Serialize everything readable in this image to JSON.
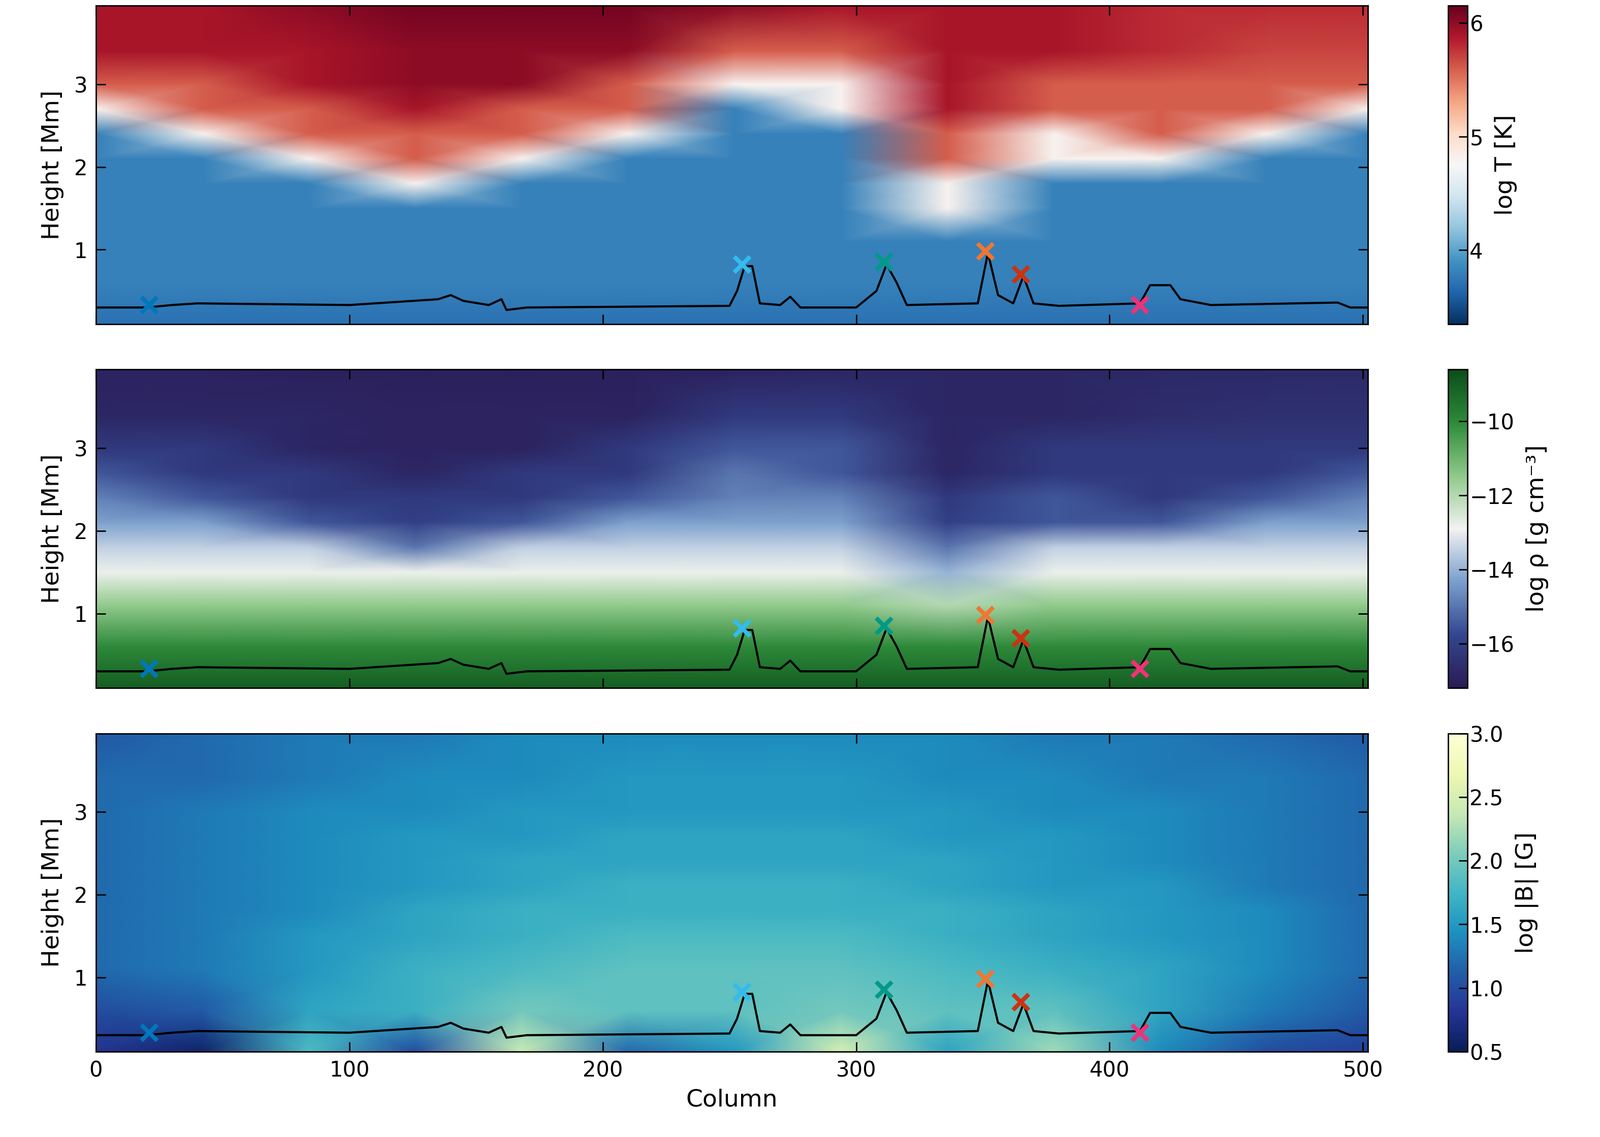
{
  "chart_data": [
    {
      "type": "heatmap",
      "ylabel": "Height [Mm]",
      "tick_labels": "y",
      "xlim": [
        0,
        502
      ],
      "ylim": [
        0.1,
        3.95
      ],
      "xticks": [
        0,
        100,
        200,
        300,
        400,
        500
      ],
      "yticks": [
        1,
        2,
        3
      ],
      "x": [
        0,
        42,
        84,
        126,
        168,
        210,
        252,
        294,
        336,
        378,
        420,
        462,
        502
      ],
      "y": [
        0.1,
        0.6,
        1.1,
        1.5,
        1.8,
        2.1,
        2.4,
        2.7,
        3.0,
        3.4,
        3.95
      ],
      "cells": [
        [
          3.7,
          3.7,
          3.7,
          3.7,
          3.7,
          3.7,
          3.7,
          3.7,
          3.7,
          3.7,
          3.7,
          3.7,
          3.7
        ],
        [
          3.8,
          3.8,
          3.8,
          3.8,
          3.8,
          3.8,
          3.8,
          3.8,
          3.8,
          3.8,
          3.8,
          3.8,
          3.8
        ],
        [
          3.8,
          3.8,
          3.8,
          3.8,
          3.8,
          3.8,
          3.8,
          3.8,
          3.8,
          3.8,
          3.8,
          3.8,
          3.8
        ],
        [
          3.8,
          3.8,
          3.8,
          3.8,
          3.8,
          3.8,
          3.8,
          3.8,
          4.8,
          3.8,
          3.8,
          3.8,
          3.8
        ],
        [
          3.8,
          3.8,
          3.8,
          4.8,
          3.8,
          3.8,
          3.8,
          3.8,
          4.8,
          3.8,
          3.8,
          3.8,
          3.8
        ],
        [
          3.8,
          3.8,
          4.8,
          5.6,
          4.8,
          3.8,
          3.8,
          3.8,
          5.6,
          4.8,
          4.8,
          3.8,
          3.8
        ],
        [
          3.8,
          4.8,
          5.6,
          5.6,
          5.6,
          4.8,
          3.8,
          3.8,
          5.6,
          4.8,
          5.6,
          4.8,
          3.8
        ],
        [
          4.8,
          5.6,
          5.6,
          5.9,
          5.6,
          5.6,
          3.8,
          4.8,
          5.9,
          5.6,
          5.6,
          5.6,
          4.8
        ],
        [
          5.6,
          5.6,
          5.9,
          6.0,
          6.0,
          5.6,
          4.8,
          4.8,
          5.9,
          5.6,
          5.6,
          5.6,
          5.6
        ],
        [
          5.9,
          5.9,
          5.9,
          6.0,
          6.0,
          6.0,
          5.6,
          5.6,
          5.9,
          5.9,
          5.8,
          5.7,
          5.7
        ],
        [
          5.9,
          5.9,
          6.0,
          6.1,
          6.1,
          6.1,
          6.0,
          5.9,
          5.9,
          5.9,
          5.8,
          5.8,
          5.8
        ]
      ],
      "colorbar": {
        "label": "log T [K]",
        "range": [
          3.35,
          6.15
        ],
        "ticks": [
          4,
          5,
          6
        ]
      },
      "series": [
        {
          "type": "line",
          "color": "#000000",
          "x": [
            0,
            20,
            30,
            40,
            100,
            135,
            140,
            145,
            155,
            160,
            162,
            170,
            250,
            253,
            256,
            259,
            262,
            270,
            274,
            278,
            300,
            308,
            312,
            316,
            320,
            348,
            352,
            356,
            362,
            366,
            370,
            380,
            412,
            416,
            424,
            428,
            440,
            490,
            495,
            502
          ],
          "values": [
            0.3,
            0.3,
            0.33,
            0.35,
            0.33,
            0.4,
            0.45,
            0.38,
            0.33,
            0.4,
            0.27,
            0.3,
            0.32,
            0.5,
            0.8,
            0.8,
            0.35,
            0.33,
            0.43,
            0.3,
            0.3,
            0.5,
            0.82,
            0.6,
            0.33,
            0.35,
            0.96,
            0.45,
            0.35,
            0.68,
            0.35,
            0.32,
            0.35,
            0.57,
            0.57,
            0.4,
            0.33,
            0.36,
            0.3,
            0.3
          ]
        },
        {
          "type": "scatter",
          "marker": "x",
          "x": [
            21,
            255,
            311,
            351,
            365,
            412
          ],
          "values": [
            0.33,
            0.82,
            0.85,
            0.98,
            0.7,
            0.33
          ],
          "colors": [
            "#0077bb",
            "#33bbee",
            "#009988",
            "#ee7733",
            "#cc3311",
            "#ee3377"
          ]
        }
      ]
    },
    {
      "type": "heatmap",
      "ylabel": "Height [Mm]",
      "tick_labels": "y",
      "xlim": [
        0,
        502
      ],
      "ylim": [
        0.1,
        3.95
      ],
      "xticks": [
        0,
        100,
        200,
        300,
        400,
        500
      ],
      "yticks": [
        1,
        2,
        3
      ],
      "x": [
        0,
        42,
        84,
        126,
        168,
        210,
        252,
        294,
        336,
        378,
        420,
        462,
        502
      ],
      "y": [
        0.1,
        0.6,
        1.1,
        1.5,
        1.8,
        2.1,
        2.4,
        2.7,
        3.0,
        3.4,
        3.95
      ],
      "cells": [
        [
          -9.0,
          -9.0,
          -9.0,
          -9.0,
          -9.0,
          -9.0,
          -9.0,
          -9.0,
          -9.0,
          -9.0,
          -9.0,
          -9.0,
          -9.0
        ],
        [
          -10.0,
          -10.0,
          -10.0,
          -10.0,
          -10.0,
          -10.0,
          -10.0,
          -10.0,
          -10.0,
          -10.0,
          -10.0,
          -10.0,
          -10.0
        ],
        [
          -11.5,
          -11.5,
          -11.5,
          -11.5,
          -11.5,
          -11.5,
          -11.5,
          -11.5,
          -12.0,
          -11.5,
          -11.5,
          -11.5,
          -11.5
        ],
        [
          -12.8,
          -12.8,
          -12.8,
          -12.8,
          -12.8,
          -12.8,
          -12.8,
          -12.8,
          -14.0,
          -12.8,
          -12.8,
          -12.8,
          -12.8
        ],
        [
          -13.5,
          -13.5,
          -13.5,
          -15.0,
          -13.5,
          -13.5,
          -13.5,
          -13.5,
          -15.0,
          -13.5,
          -13.5,
          -13.5,
          -13.5
        ],
        [
          -14.3,
          -14.3,
          -15.5,
          -16.0,
          -15.5,
          -14.3,
          -14.3,
          -14.3,
          -16.0,
          -15.5,
          -15.5,
          -14.3,
          -14.3
        ],
        [
          -14.8,
          -15.5,
          -16.2,
          -16.2,
          -16.2,
          -15.5,
          -14.8,
          -14.8,
          -16.2,
          -15.5,
          -16.2,
          -15.5,
          -14.8
        ],
        [
          -15.5,
          -16.2,
          -16.2,
          -16.8,
          -16.2,
          -16.2,
          -15.0,
          -15.5,
          -16.8,
          -16.2,
          -16.2,
          -16.2,
          -15.5
        ],
        [
          -16.2,
          -16.2,
          -16.8,
          -16.9,
          -16.9,
          -16.2,
          -15.5,
          -15.5,
          -16.8,
          -16.2,
          -16.2,
          -16.2,
          -16.2
        ],
        [
          -16.8,
          -16.8,
          -16.8,
          -16.9,
          -16.9,
          -16.9,
          -16.2,
          -16.2,
          -16.8,
          -16.8,
          -16.6,
          -16.5,
          -16.5
        ],
        [
          -16.9,
          -16.9,
          -17.0,
          -17.0,
          -17.0,
          -17.0,
          -16.9,
          -16.8,
          -16.8,
          -16.8,
          -16.7,
          -16.7,
          -16.7
        ]
      ],
      "colorbar": {
        "label": "log ρ [g cm⁻³]",
        "range": [
          -17.2,
          -8.6
        ],
        "ticks": [
          {
            "value": -10,
            "label": "−10"
          },
          {
            "value": -12,
            "label": "−12"
          },
          {
            "value": -14,
            "label": "−14"
          },
          {
            "value": -16,
            "label": "−16"
          }
        ]
      },
      "series": [
        {
          "type": "line",
          "color": "#000000",
          "x": [
            0,
            20,
            30,
            40,
            100,
            135,
            140,
            145,
            155,
            160,
            162,
            170,
            250,
            253,
            256,
            259,
            262,
            270,
            274,
            278,
            300,
            308,
            312,
            316,
            320,
            348,
            352,
            356,
            362,
            366,
            370,
            380,
            412,
            416,
            424,
            428,
            440,
            490,
            495,
            502
          ],
          "values": [
            0.3,
            0.3,
            0.33,
            0.35,
            0.33,
            0.4,
            0.45,
            0.38,
            0.33,
            0.4,
            0.27,
            0.3,
            0.32,
            0.5,
            0.8,
            0.8,
            0.35,
            0.33,
            0.43,
            0.3,
            0.3,
            0.5,
            0.82,
            0.6,
            0.33,
            0.35,
            0.96,
            0.45,
            0.35,
            0.68,
            0.35,
            0.32,
            0.35,
            0.57,
            0.57,
            0.4,
            0.33,
            0.36,
            0.3,
            0.3
          ]
        },
        {
          "type": "scatter",
          "marker": "x",
          "x": [
            21,
            255,
            311,
            351,
            365,
            412
          ],
          "values": [
            0.33,
            0.82,
            0.85,
            0.98,
            0.7,
            0.33
          ],
          "colors": [
            "#0077bb",
            "#33bbee",
            "#009988",
            "#ee7733",
            "#cc3311",
            "#ee3377"
          ]
        }
      ]
    },
    {
      "type": "heatmap",
      "ylabel": "Height [Mm]",
      "xlabel": "Column",
      "xlim": [
        0,
        502
      ],
      "ylim": [
        0.1,
        3.95
      ],
      "xticks": [
        0,
        100,
        200,
        300,
        400,
        500
      ],
      "yticks": [
        1,
        2,
        3
      ],
      "x": [
        0,
        42,
        84,
        126,
        168,
        210,
        252,
        294,
        336,
        378,
        420,
        462,
        502
      ],
      "y": [
        0.1,
        0.6,
        1.1,
        1.5,
        1.8,
        2.1,
        2.4,
        2.7,
        3.0,
        3.4,
        3.95
      ],
      "cells": [
        [
          0.8,
          0.6,
          1.8,
          1.0,
          2.4,
          1.2,
          1.5,
          2.5,
          1.6,
          2.2,
          1.4,
          1.0,
          0.9
        ],
        [
          1.0,
          1.1,
          1.6,
          1.7,
          2.0,
          1.9,
          1.9,
          2.0,
          1.9,
          1.9,
          1.6,
          1.3,
          1.1
        ],
        [
          1.2,
          1.3,
          1.5,
          1.7,
          1.8,
          1.9,
          1.9,
          1.9,
          1.8,
          1.7,
          1.6,
          1.4,
          1.2
        ],
        [
          1.2,
          1.3,
          1.5,
          1.6,
          1.7,
          1.8,
          1.8,
          1.8,
          1.7,
          1.6,
          1.5,
          1.4,
          1.2
        ],
        [
          1.2,
          1.3,
          1.4,
          1.6,
          1.7,
          1.7,
          1.7,
          1.7,
          1.7,
          1.6,
          1.5,
          1.4,
          1.2
        ],
        [
          1.2,
          1.3,
          1.4,
          1.5,
          1.6,
          1.7,
          1.7,
          1.7,
          1.6,
          1.5,
          1.5,
          1.3,
          1.2
        ],
        [
          1.2,
          1.3,
          1.4,
          1.5,
          1.6,
          1.6,
          1.6,
          1.6,
          1.6,
          1.5,
          1.4,
          1.3,
          1.2
        ],
        [
          1.2,
          1.3,
          1.4,
          1.5,
          1.5,
          1.6,
          1.6,
          1.6,
          1.5,
          1.5,
          1.4,
          1.3,
          1.2
        ],
        [
          1.2,
          1.3,
          1.4,
          1.4,
          1.5,
          1.5,
          1.5,
          1.5,
          1.5,
          1.4,
          1.4,
          1.3,
          1.2
        ],
        [
          1.2,
          1.2,
          1.3,
          1.4,
          1.4,
          1.5,
          1.5,
          1.5,
          1.4,
          1.4,
          1.3,
          1.3,
          1.2
        ],
        [
          1.1,
          1.2,
          1.3,
          1.3,
          1.4,
          1.4,
          1.4,
          1.4,
          1.4,
          1.3,
          1.3,
          1.2,
          1.1
        ]
      ],
      "colorbar": {
        "label": "log |B| [G]",
        "range": [
          0.5,
          3.0
        ],
        "ticks": [
          0.5,
          1.0,
          1.5,
          2.0,
          2.5,
          3.0
        ]
      },
      "series": [
        {
          "type": "line",
          "color": "#000000",
          "x": [
            0,
            20,
            30,
            40,
            100,
            135,
            140,
            145,
            155,
            160,
            162,
            170,
            250,
            253,
            256,
            259,
            262,
            270,
            274,
            278,
            300,
            308,
            312,
            316,
            320,
            348,
            352,
            356,
            362,
            366,
            370,
            380,
            412,
            416,
            424,
            428,
            440,
            490,
            495,
            502
          ],
          "values": [
            0.3,
            0.3,
            0.33,
            0.35,
            0.33,
            0.4,
            0.45,
            0.38,
            0.33,
            0.4,
            0.27,
            0.3,
            0.32,
            0.5,
            0.8,
            0.8,
            0.35,
            0.33,
            0.43,
            0.3,
            0.3,
            0.5,
            0.82,
            0.6,
            0.33,
            0.35,
            0.96,
            0.45,
            0.35,
            0.68,
            0.35,
            0.32,
            0.35,
            0.57,
            0.57,
            0.4,
            0.33,
            0.36,
            0.3,
            0.3
          ]
        },
        {
          "type": "scatter",
          "marker": "x",
          "x": [
            21,
            255,
            311,
            351,
            365,
            412
          ],
          "values": [
            0.33,
            0.82,
            0.85,
            0.98,
            0.7,
            0.33
          ],
          "colors": [
            "#0077bb",
            "#33bbee",
            "#009988",
            "#ee7733",
            "#cc3311",
            "#ee3377"
          ]
        }
      ]
    }
  ]
}
